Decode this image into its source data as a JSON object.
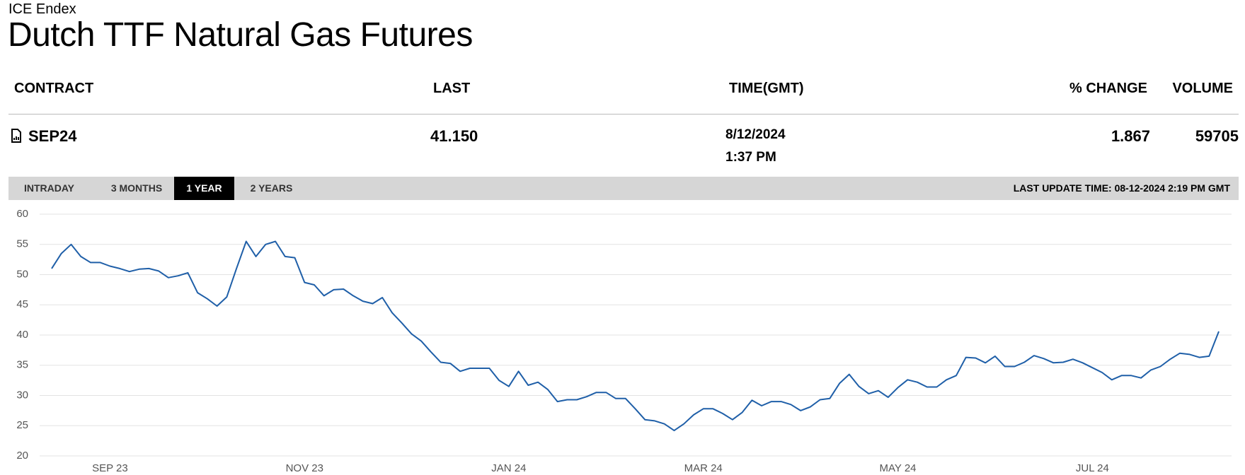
{
  "header": {
    "exchange": "ICE Endex",
    "title": "Dutch TTF Natural Gas Futures"
  },
  "table": {
    "columns": [
      "CONTRACT",
      "LAST",
      "TIME(GMT)",
      "% CHANGE",
      "VOLUME"
    ],
    "rows": [
      {
        "contract": "SEP24",
        "last": "41.150",
        "date": "8/12/2024",
        "time": "1:37 PM",
        "change": "1.867",
        "volume": "59705"
      }
    ]
  },
  "tabs": {
    "items": [
      "INTRADAY",
      "3 MONTHS",
      "1 YEAR",
      "2 YEARS"
    ],
    "active": 2,
    "last_update": "LAST UPDATE TIME: 08-12-2024 2:19 PM GMT"
  },
  "chart_data": {
    "type": "line",
    "color": "#1f5fa8",
    "grid": true,
    "categories": [
      null,
      null,
      null,
      null,
      null,
      null,
      "SEP 23",
      null,
      null,
      null,
      null,
      null,
      null,
      null,
      null,
      null,
      null,
      null,
      null,
      null,
      null,
      null,
      null,
      null,
      null,
      null,
      "NOV 23",
      null,
      null,
      null,
      null,
      null,
      null,
      null,
      null,
      null,
      null,
      null,
      null,
      null,
      null,
      null,
      null,
      null,
      null,
      null,
      null,
      "JAN 24",
      null,
      null,
      null,
      null,
      null,
      null,
      null,
      null,
      null,
      null,
      null,
      null,
      null,
      null,
      null,
      null,
      null,
      null,
      null,
      "MAR 24",
      null,
      null,
      null,
      null,
      null,
      null,
      null,
      null,
      null,
      null,
      null,
      null,
      null,
      null,
      null,
      null,
      null,
      null,
      null,
      "MAY 24",
      null,
      null,
      null,
      null,
      null,
      null,
      null,
      null,
      null,
      null,
      null,
      null,
      null,
      null,
      null,
      null,
      null,
      null,
      null,
      "JUL 24",
      null,
      null,
      null,
      null,
      null,
      null,
      null,
      null,
      null,
      null,
      null,
      null,
      null
    ],
    "values": [
      51,
      53.5,
      55,
      53,
      52,
      52,
      51.4,
      51,
      50.5,
      50.9,
      51,
      50.6,
      49.5,
      49.8,
      50.3,
      47,
      46,
      44.8,
      46.3,
      51,
      55.5,
      53,
      55,
      55.5,
      53,
      52.8,
      48.7,
      48.3,
      46.5,
      47.5,
      47.6,
      46.5,
      45.6,
      45.2,
      46.2,
      43.7,
      42,
      40.2,
      39,
      37.2,
      35.5,
      35.3,
      34,
      34.5,
      34.5,
      34.5,
      32.5,
      31.5,
      34,
      31.7,
      32.2,
      31,
      29,
      29.3,
      29.3,
      29.8,
      30.5,
      30.5,
      29.5,
      29.5,
      27.8,
      26,
      25.8,
      25.3,
      24.2,
      25.3,
      26.8,
      27.8,
      27.8,
      27,
      26,
      27.2,
      29.2,
      28.3,
      29,
      29,
      28.5,
      27.5,
      28.1,
      29.3,
      29.5,
      32,
      33.5,
      31.5,
      30.3,
      30.8,
      29.7,
      31.3,
      32.6,
      32.2,
      31.4,
      31.4,
      32.6,
      33.3,
      36.3,
      36.2,
      35.4,
      36.5,
      34.8,
      34.8,
      35.5,
      36.6,
      36.1,
      35.4,
      35.5,
      36,
      35.4,
      34.6,
      33.8,
      32.6,
      33.3,
      33.3,
      32.9,
      34.2,
      34.8,
      36,
      37,
      36.8,
      36.3,
      36.5,
      40.6
    ],
    "ylim": [
      20,
      60
    ],
    "yticks": [
      20,
      25,
      30,
      35,
      40,
      45,
      50,
      55,
      60
    ]
  }
}
